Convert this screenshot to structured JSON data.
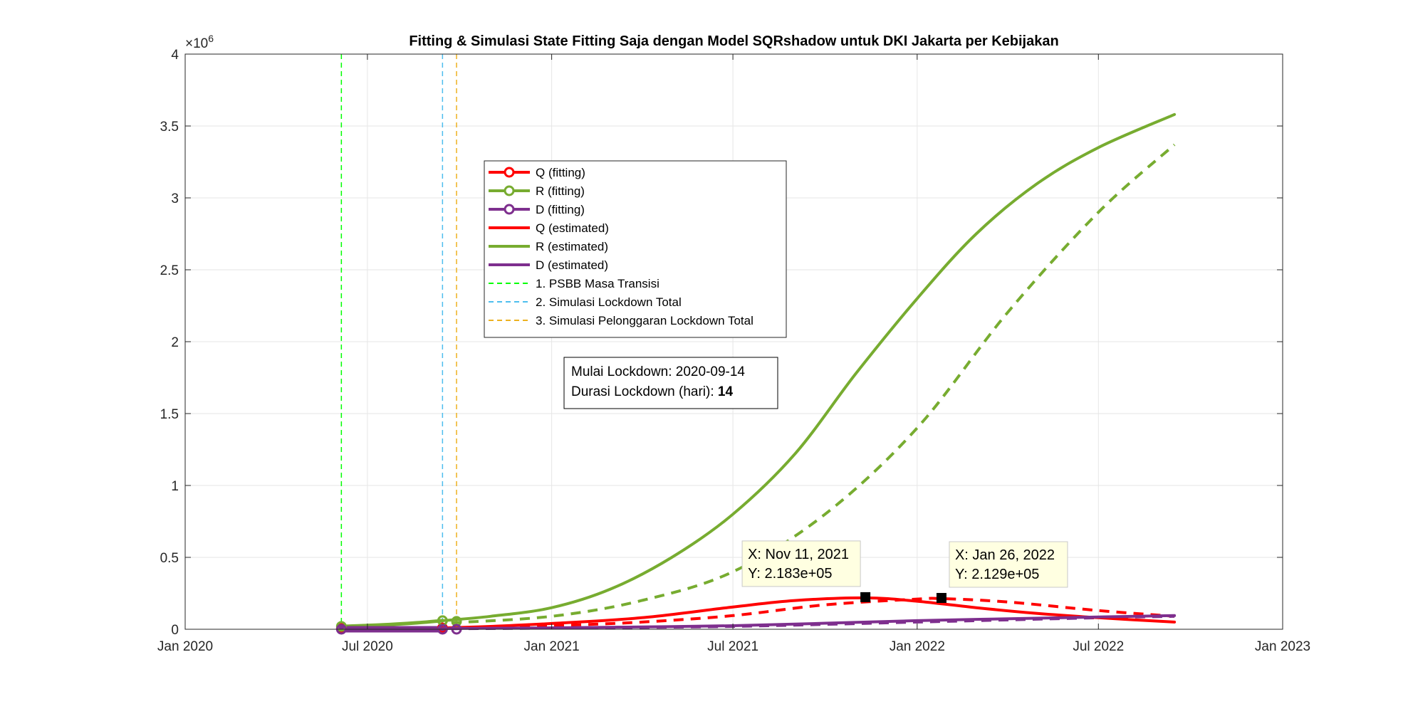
{
  "chart_data": {
    "type": "line",
    "title": "Fitting & Simulasi State Fitting Saja dengan Model SQRshadow untuk DKI Jakarta per Kebijakan",
    "xlabel": "",
    "ylabel": "",
    "y_exponent_label": "×10",
    "y_exponent_power": "6",
    "xlim": [
      "2020-01-01",
      "2023-01-01"
    ],
    "ylim": [
      0,
      4
    ],
    "y_units_note": "millions",
    "grid": true,
    "x_ticks": [
      {
        "date": "2020-01-01",
        "label": "Jan 2020"
      },
      {
        "date": "2020-07-01",
        "label": "Jul 2020"
      },
      {
        "date": "2021-01-01",
        "label": "Jan 2021"
      },
      {
        "date": "2021-07-01",
        "label": "Jul 2021"
      },
      {
        "date": "2022-01-01",
        "label": "Jan 2022"
      },
      {
        "date": "2022-07-01",
        "label": "Jul 2022"
      },
      {
        "date": "2023-01-01",
        "label": "Jan 2023"
      }
    ],
    "y_ticks": [
      {
        "value": 0,
        "label": "0"
      },
      {
        "value": 0.5,
        "label": "0.5"
      },
      {
        "value": 1,
        "label": "1"
      },
      {
        "value": 1.5,
        "label": "1.5"
      },
      {
        "value": 2,
        "label": "2"
      },
      {
        "value": 2.5,
        "label": "2.5"
      },
      {
        "value": 3,
        "label": "3"
      },
      {
        "value": 3.5,
        "label": "3.5"
      },
      {
        "value": 4,
        "label": "4"
      }
    ],
    "series": [
      {
        "name": "Q (fitting)",
        "color": "#ff0000",
        "style": "solid-marker",
        "width": 5,
        "points": [
          [
            "2020-06-05",
            0.005
          ],
          [
            "2020-07-15",
            0.006
          ],
          [
            "2020-08-20",
            0.008
          ],
          [
            "2020-09-14",
            0.009
          ]
        ]
      },
      {
        "name": "R (fitting)",
        "color": "#77ac30",
        "style": "solid-marker",
        "width": 5,
        "points": [
          [
            "2020-06-05",
            0.02
          ],
          [
            "2020-07-15",
            0.03
          ],
          [
            "2020-08-20",
            0.045
          ],
          [
            "2020-09-14",
            0.06
          ]
        ]
      },
      {
        "name": "D (fitting)",
        "color": "#7e2f8e",
        "style": "solid-marker",
        "width": 9,
        "points": [
          [
            "2020-06-05",
            0.0
          ],
          [
            "2020-07-15",
            0.0
          ],
          [
            "2020-08-20",
            0.0
          ],
          [
            "2020-09-14",
            0.0
          ]
        ]
      },
      {
        "name": "Q (estimated)",
        "color": "#ff0000",
        "style": "solid",
        "width": 4,
        "points": [
          [
            "2020-09-14",
            0.009
          ],
          [
            "2020-11-01",
            0.02
          ],
          [
            "2021-01-01",
            0.04
          ],
          [
            "2021-04-01",
            0.08
          ],
          [
            "2021-07-01",
            0.155
          ],
          [
            "2021-09-01",
            0.2
          ],
          [
            "2021-11-11",
            0.2183
          ],
          [
            "2022-01-01",
            0.195
          ],
          [
            "2022-03-01",
            0.15
          ],
          [
            "2022-05-01",
            0.11
          ],
          [
            "2022-07-01",
            0.08
          ],
          [
            "2022-09-15",
            0.05
          ]
        ]
      },
      {
        "name": "R (estimated)",
        "color": "#77ac30",
        "style": "solid",
        "width": 4,
        "points": [
          [
            "2020-09-14",
            0.06
          ],
          [
            "2020-11-01",
            0.09
          ],
          [
            "2021-01-01",
            0.15
          ],
          [
            "2021-03-01",
            0.28
          ],
          [
            "2021-05-01",
            0.5
          ],
          [
            "2021-07-01",
            0.8
          ],
          [
            "2021-09-01",
            1.22
          ],
          [
            "2021-11-01",
            1.78
          ],
          [
            "2022-01-01",
            2.3
          ],
          [
            "2022-03-01",
            2.75
          ],
          [
            "2022-05-01",
            3.1
          ],
          [
            "2022-07-01",
            3.35
          ],
          [
            "2022-09-15",
            3.58
          ]
        ]
      },
      {
        "name": "D (estimated)",
        "color": "#7e2f8e",
        "style": "solid",
        "width": 4,
        "points": [
          [
            "2020-09-14",
            0.005
          ],
          [
            "2021-01-01",
            0.01
          ],
          [
            "2021-07-01",
            0.025
          ],
          [
            "2022-01-01",
            0.06
          ],
          [
            "2022-07-01",
            0.085
          ],
          [
            "2022-09-15",
            0.095
          ]
        ]
      }
    ],
    "simulation_series": [
      {
        "color": "#ff0000",
        "style": "dashed",
        "width": 4,
        "points": [
          [
            "2020-09-23",
            0.009
          ],
          [
            "2021-01-01",
            0.025
          ],
          [
            "2021-04-01",
            0.05
          ],
          [
            "2021-07-01",
            0.095
          ],
          [
            "2021-10-01",
            0.17
          ],
          [
            "2022-01-01",
            0.21
          ],
          [
            "2022-01-26",
            0.2129
          ],
          [
            "2022-04-01",
            0.19
          ],
          [
            "2022-07-01",
            0.13
          ],
          [
            "2022-09-15",
            0.09
          ]
        ]
      },
      {
        "color": "#77ac30",
        "style": "dashed",
        "width": 4,
        "points": [
          [
            "2020-09-23",
            0.045
          ],
          [
            "2021-01-01",
            0.09
          ],
          [
            "2021-04-01",
            0.2
          ],
          [
            "2021-07-01",
            0.4
          ],
          [
            "2021-10-01",
            0.8
          ],
          [
            "2022-01-01",
            1.4
          ],
          [
            "2022-04-01",
            2.2
          ],
          [
            "2022-07-01",
            2.9
          ],
          [
            "2022-09-15",
            3.37
          ]
        ]
      },
      {
        "color": "#7e2f8e",
        "style": "dashed",
        "width": 4,
        "points": [
          [
            "2020-09-23",
            0.004
          ],
          [
            "2021-01-01",
            0.008
          ],
          [
            "2021-07-01",
            0.02
          ],
          [
            "2022-01-01",
            0.05
          ],
          [
            "2022-07-01",
            0.08
          ],
          [
            "2022-09-15",
            0.09
          ]
        ]
      }
    ],
    "vertical_lines": [
      {
        "name": "1. PSBB Masa Transisi",
        "date": "2020-06-05",
        "color": "#00ff00"
      },
      {
        "name": "2. Simulasi Lockdown Total",
        "date": "2020-09-14",
        "color": "#4dbeee"
      },
      {
        "name": "3. Simulasi Pelonggaran Lockdown Total",
        "date": "2020-09-28",
        "color": "#edb120"
      }
    ],
    "legend": {
      "placement": "upper-left-inside",
      "entries": [
        {
          "label": "Q (fitting)",
          "color": "#ff0000",
          "kind": "marker-line"
        },
        {
          "label": "R (fitting)",
          "color": "#77ac30",
          "kind": "marker-line"
        },
        {
          "label": "D (fitting)",
          "color": "#7e2f8e",
          "kind": "marker-line"
        },
        {
          "label": "Q (estimated)",
          "color": "#ff0000",
          "kind": "line"
        },
        {
          "label": "R (estimated)",
          "color": "#77ac30",
          "kind": "line"
        },
        {
          "label": "D (estimated)",
          "color": "#7e2f8e",
          "kind": "line"
        },
        {
          "label": "1. PSBB Masa Transisi",
          "color": "#00ff00",
          "kind": "dashed"
        },
        {
          "label": "2. Simulasi Lockdown Total",
          "color": "#4dbeee",
          "kind": "dashed"
        },
        {
          "label": "3. Simulasi Pelonggaran Lockdown Total",
          "color": "#edb120",
          "kind": "dashed"
        }
      ]
    },
    "annotation_box": {
      "line1_prefix": "Mulai Lockdown: ",
      "line1_value": "2020-09-14",
      "line2_prefix": "Durasi Lockdown (hari): ",
      "line2_value": "14"
    },
    "datatips": [
      {
        "date": "2021-11-11",
        "value": 0.2183,
        "x_text": "X: Nov 11, 2021",
        "y_text": "Y: 2.183e+05"
      },
      {
        "date": "2022-01-26",
        "value": 0.2129,
        "x_text": "X: Jan 26, 2022",
        "y_text": "Y: 2.129e+05"
      }
    ]
  }
}
